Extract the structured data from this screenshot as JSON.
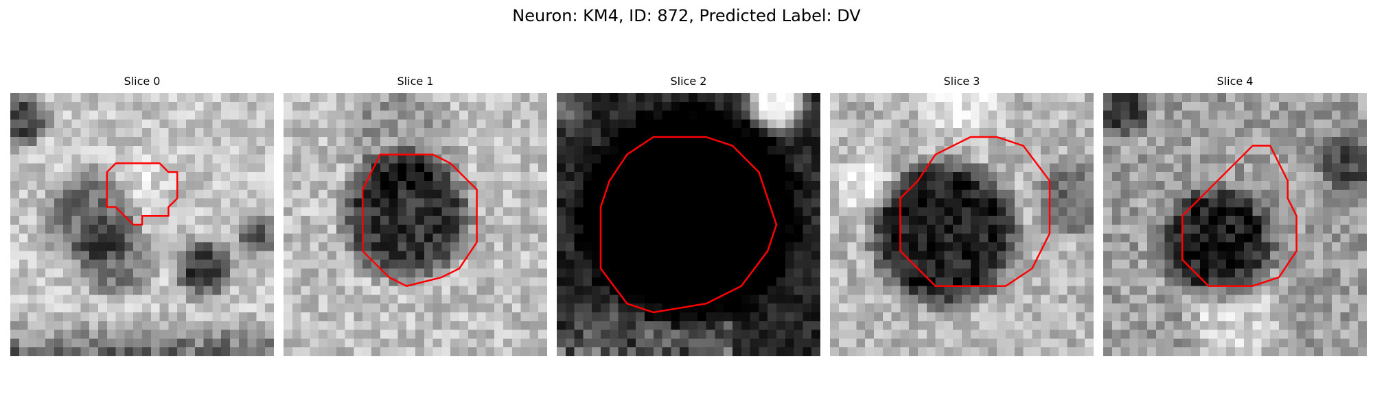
{
  "title": "Neuron: KM4, ID: 872, Predicted Label: DV",
  "contour_color": "#ff0000",
  "colormap": "grayscale",
  "panels": [
    {
      "title": "Slice 0"
    },
    {
      "title": "Slice 1"
    },
    {
      "title": "Slice 2"
    },
    {
      "title": "Slice 3"
    },
    {
      "title": "Slice 4"
    }
  ]
}
